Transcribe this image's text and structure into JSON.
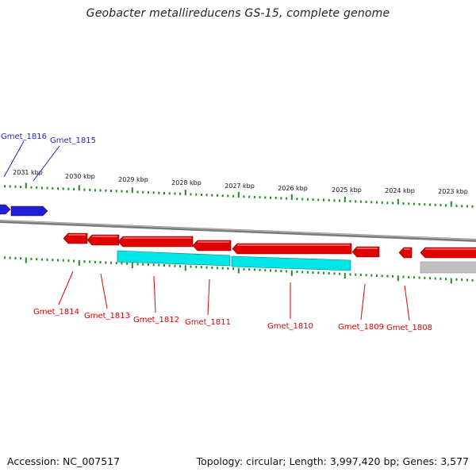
{
  "title": "Geobacter metallireducens GS-15, complete genome",
  "footer": {
    "accession": "Accession: NC_007517",
    "topology": "Topology: circular; Length: 3,997,420 bp; Genes: 3,577"
  },
  "colors": {
    "forward_gene": "#1f1fd6",
    "reverse_gene": "#e00000",
    "cds_feature": "#00e6e6",
    "backbone": "#888888",
    "ticks": "#1a8f1a",
    "pseudo_feature": "#c0c0c0"
  },
  "scale_labels": [
    "2031 kbp",
    "2030 kbp",
    "2029 kbp",
    "2028 kbp",
    "2027 kbp",
    "2026 kbp",
    "2025 kbp",
    "2024 kbp",
    "2023 kbp"
  ],
  "genes_forward": [
    {
      "label": "Gmet_1816"
    },
    {
      "label": "Gmet_1815"
    }
  ],
  "genes_reverse": [
    {
      "label": "Gmet_1814"
    },
    {
      "label": "Gmet_1813"
    },
    {
      "label": "Gmet_1812"
    },
    {
      "label": "Gmet_1811"
    },
    {
      "label": "Gmet_1810"
    },
    {
      "label": "Gmet_1809"
    },
    {
      "label": "Gmet_1808"
    }
  ]
}
